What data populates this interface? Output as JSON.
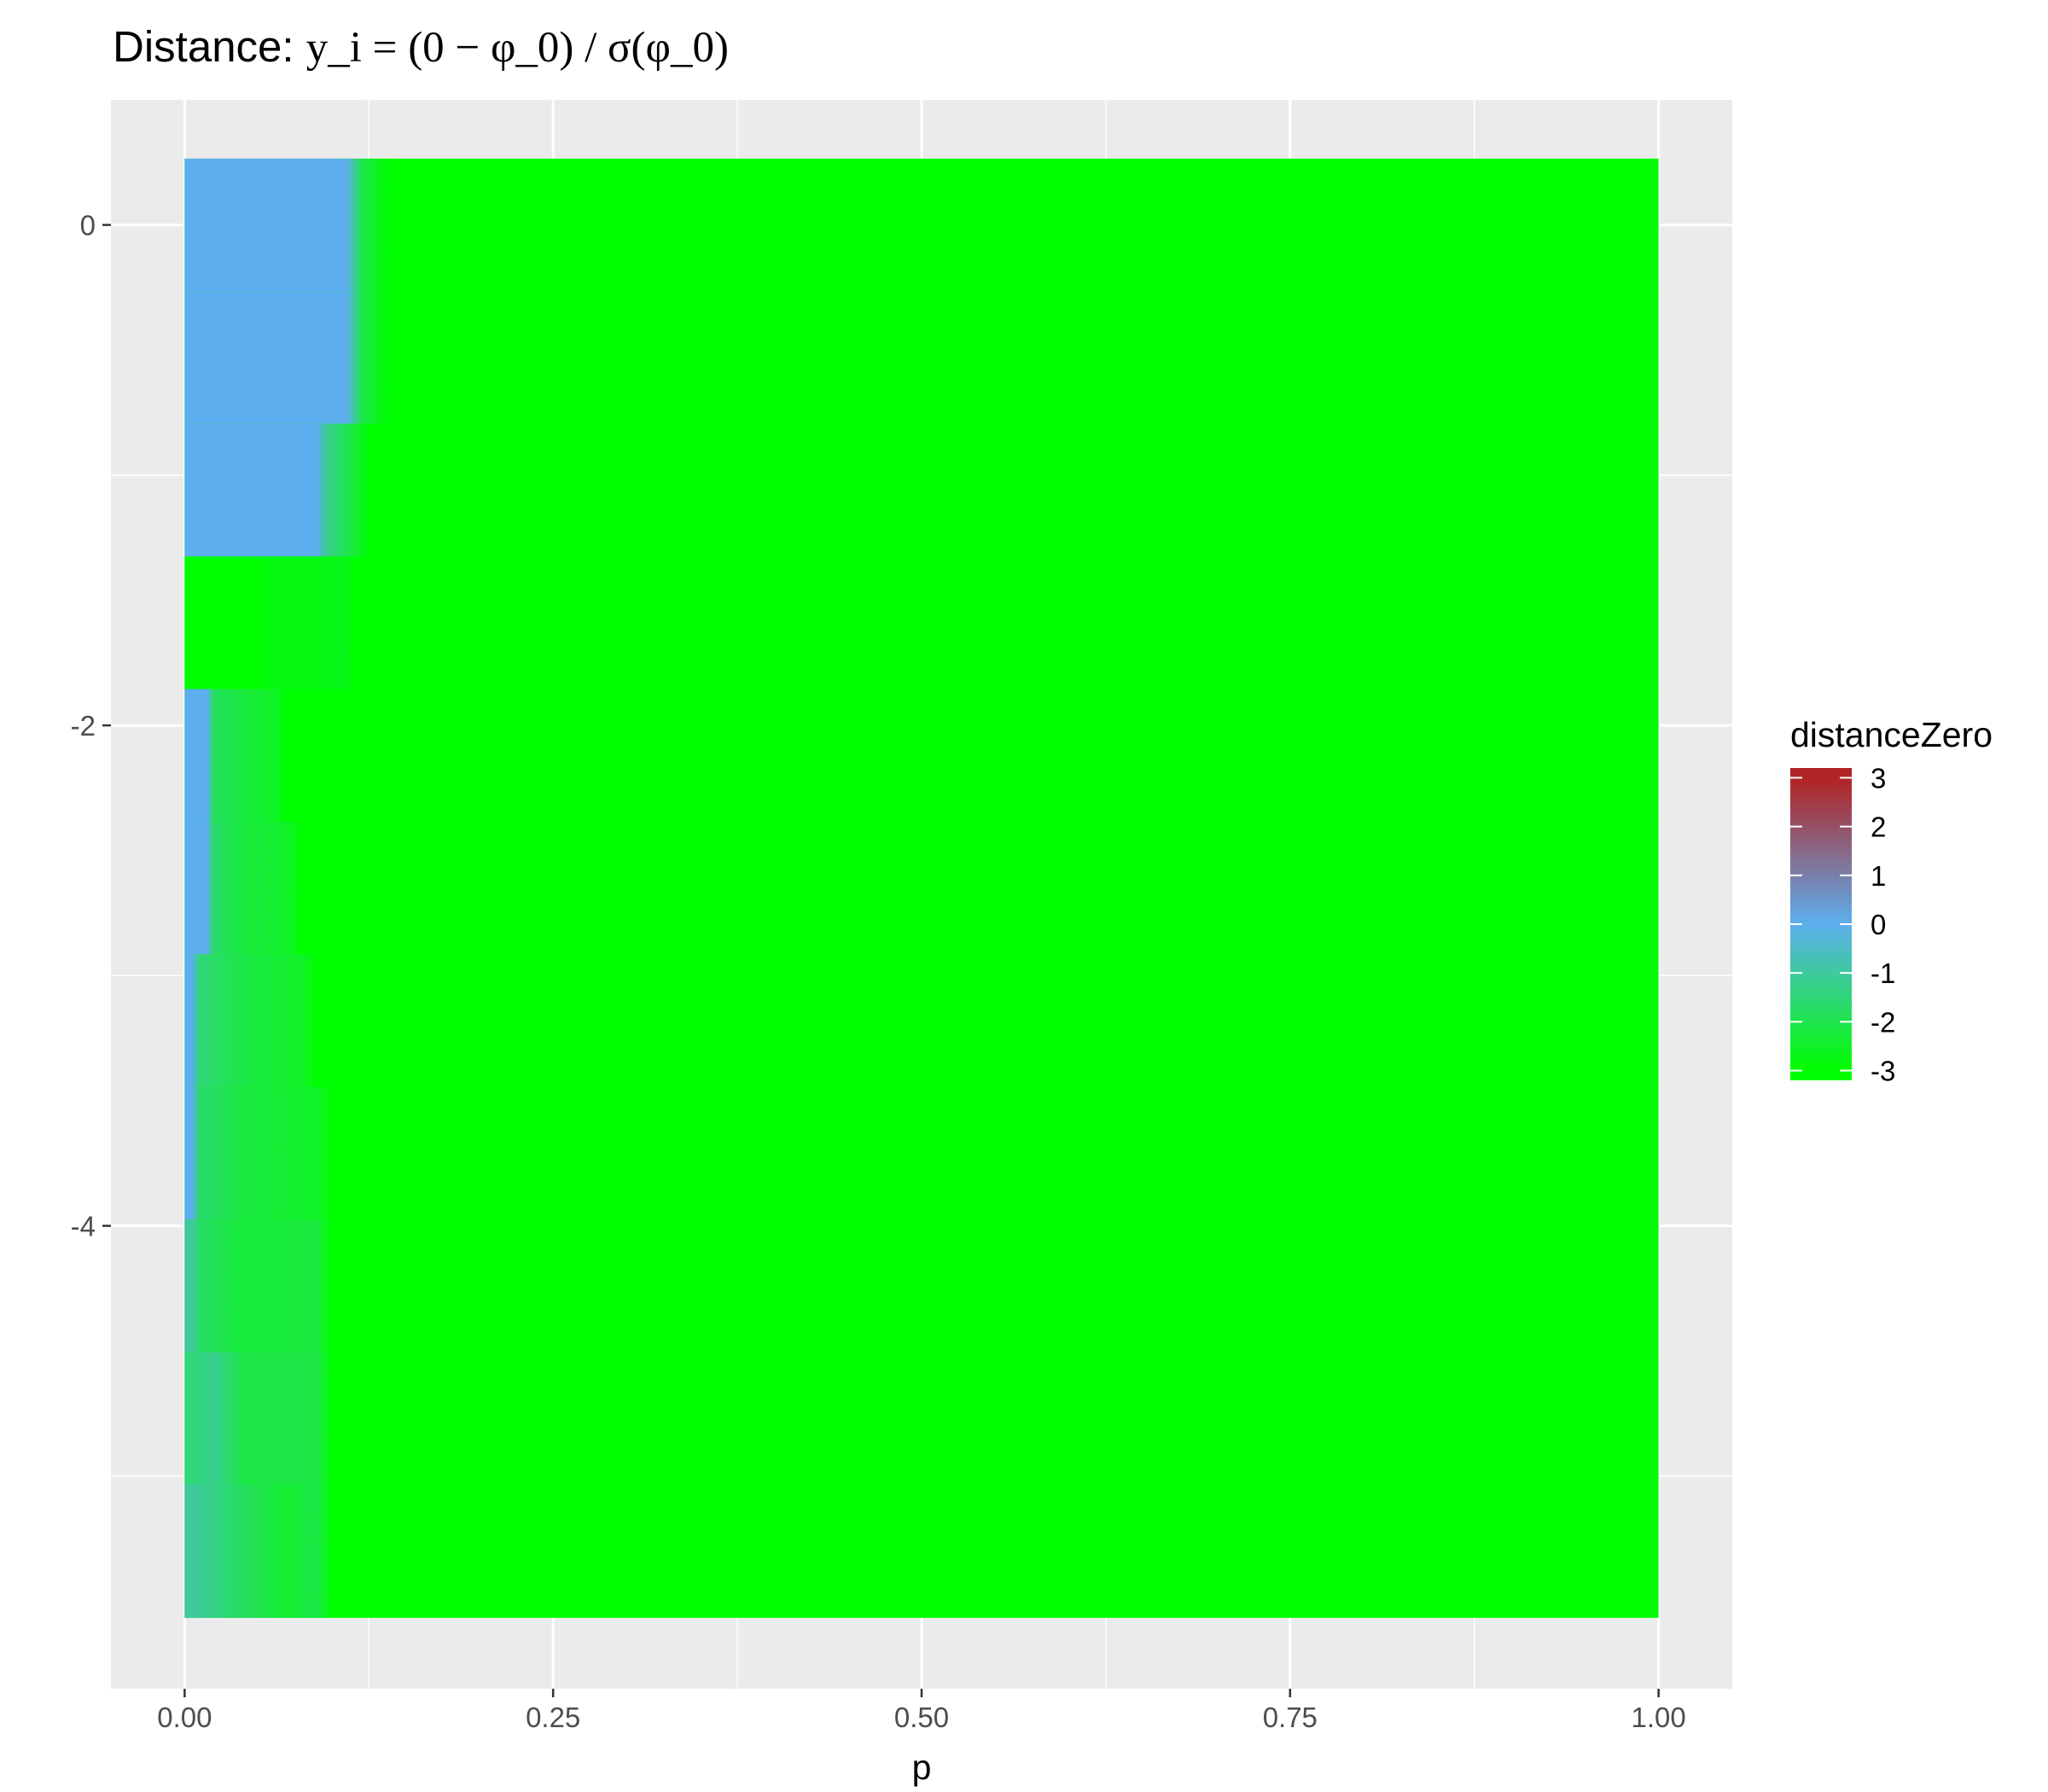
{
  "chart_data": {
    "type": "heatmap",
    "title": {
      "prefix": "Distance: ",
      "formula": "y_i = (0 − φ_0) / σ(φ_0)"
    },
    "xlabel": "p",
    "ylabel": "",
    "x_ticks": [
      0,
      0.25,
      0.5,
      0.75,
      1
    ],
    "x_tick_labels": [
      "0.00",
      "0.25",
      "0.50",
      "0.75",
      "1.00"
    ],
    "y_ticks": [
      0,
      -2,
      -4
    ],
    "y_tick_labels": [
      "0",
      "-2",
      "-4"
    ],
    "xlim": [
      -0.05,
      1.05
    ],
    "ylim": [
      -5.85,
      0.5
    ],
    "grid": true,
    "legend": {
      "title": "distanceZero",
      "position": "right",
      "ticks": [
        3,
        2,
        1,
        0,
        -1,
        -2,
        -3
      ],
      "tick_labels": [
        "3",
        "2",
        "1",
        "0",
        "-1",
        "-2",
        "-3"
      ],
      "min": -3.2,
      "max": 3.2
    },
    "color_scale": [
      {
        "value": -3,
        "color": "#00ff00"
      },
      {
        "value": 0,
        "color": "#5daeee"
      },
      {
        "value": 3,
        "color": "#b22222"
      }
    ],
    "tile_height": 0.53,
    "fill_value_beyond": -3,
    "rows": [
      {
        "y": 0,
        "p": [
          0.0,
          0.05,
          0.11,
          0.115,
          0.12,
          0.13,
          0.14
        ],
        "z": [
          0.0,
          0.0,
          0.0,
          -1.0,
          -2.0,
          -2.6,
          -3.0
        ]
      },
      {
        "y": -0.53,
        "p": [
          0.0,
          0.05,
          0.11,
          0.115,
          0.12,
          0.13,
          0.14
        ],
        "z": [
          0.0,
          0.0,
          0.0,
          -1.0,
          -2.0,
          -2.6,
          -3.0
        ]
      },
      {
        "y": -1.06,
        "p": [
          0.0,
          0.05,
          0.09,
          0.095,
          0.11,
          0.12,
          0.125
        ],
        "z": [
          0.0,
          0.0,
          0.0,
          -1.0,
          -2.0,
          -2.6,
          -3.0
        ]
      },
      {
        "y": -1.59,
        "p": [
          0.0,
          0.05,
          0.06,
          0.08,
          0.11,
          0.115
        ],
        "z": [
          -3.0,
          -3.0,
          -2.8,
          -2.8,
          -2.7,
          -3.0
        ]
      },
      {
        "y": -2.12,
        "p": [
          0.0,
          0.015,
          0.02,
          0.04,
          0.06,
          0.07
        ],
        "z": [
          0.0,
          0.0,
          -1.8,
          -2.2,
          -2.5,
          -3.0
        ]
      },
      {
        "y": -2.65,
        "p": [
          0.0,
          0.015,
          0.02,
          0.04,
          0.07,
          0.08
        ],
        "z": [
          0.0,
          0.0,
          -1.7,
          -2.2,
          -2.5,
          -3.0
        ]
      },
      {
        "y": -3.18,
        "p": [
          0.0,
          0.005,
          0.01,
          0.04,
          0.08,
          0.09
        ],
        "z": [
          0.0,
          0.0,
          -1.5,
          -2.1,
          -2.5,
          -3.0
        ]
      },
      {
        "y": -3.71,
        "p": [
          0.0,
          0.005,
          0.01,
          0.04,
          0.09,
          0.1
        ],
        "z": [
          0.0,
          0.0,
          -1.6,
          -2.2,
          -2.5,
          -3.0
        ]
      },
      {
        "y": -4.24,
        "p": [
          0.0,
          0.005,
          0.01,
          0.04,
          0.09,
          0.1
        ],
        "z": [
          -1.0,
          -1.0,
          -1.7,
          -2.3,
          -2.2,
          -3.0
        ]
      },
      {
        "y": -4.77,
        "p": [
          0.0,
          0.005,
          0.02,
          0.04,
          0.09,
          0.1
        ],
        "z": [
          -1.5,
          -1.5,
          -1.2,
          -2.1,
          -2.1,
          -3.0
        ]
      },
      {
        "y": -5.3,
        "p": [
          0.0,
          0.005,
          0.02,
          0.03,
          0.07,
          0.09,
          0.1
        ],
        "z": [
          -1.0,
          -1.0,
          -1.3,
          -1.6,
          -2.4,
          -2.1,
          -3.0
        ]
      }
    ]
  }
}
